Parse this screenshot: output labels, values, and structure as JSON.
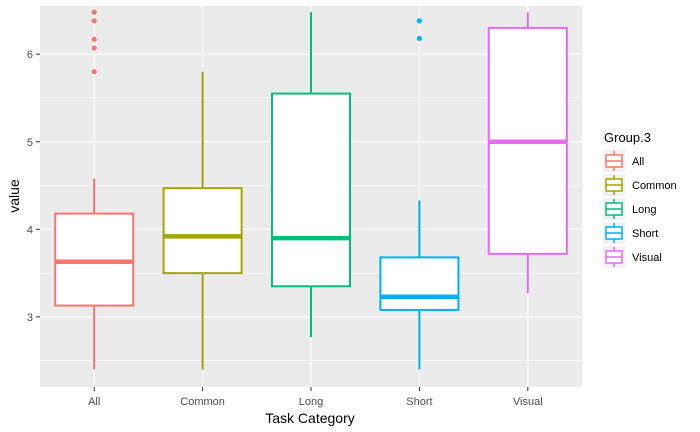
{
  "chart_data": {
    "type": "boxplot",
    "title": "",
    "xlabel": "Task Category",
    "ylabel": "value",
    "ylim": [
      2.2,
      6.55
    ],
    "yticks": [
      3,
      4,
      5,
      6
    ],
    "categories": [
      "All",
      "Common",
      "Long",
      "Short",
      "Visual"
    ],
    "boxes": [
      {
        "category": "All",
        "color": "#F8766D",
        "lower_whisker": 2.4,
        "q1": 3.13,
        "median": 3.63,
        "q3": 4.18,
        "upper_whisker": 4.58,
        "outliers": [
          5.8,
          6.07,
          6.17,
          6.38,
          6.48
        ]
      },
      {
        "category": "Common",
        "color": "#A3A500",
        "lower_whisker": 2.4,
        "q1": 3.5,
        "median": 3.92,
        "q3": 4.47,
        "upper_whisker": 5.8,
        "outliers": []
      },
      {
        "category": "Long",
        "color": "#00BF7D",
        "lower_whisker": 2.77,
        "q1": 3.35,
        "median": 3.9,
        "q3": 5.55,
        "upper_whisker": 6.48,
        "outliers": []
      },
      {
        "category": "Short",
        "color": "#00B0F6",
        "lower_whisker": 2.4,
        "q1": 3.08,
        "median": 3.23,
        "q3": 3.68,
        "upper_whisker": 4.33,
        "outliers": [
          6.18,
          6.38
        ]
      },
      {
        "category": "Visual",
        "color": "#E76BF3",
        "lower_whisker": 3.27,
        "q1": 3.72,
        "median": 5.0,
        "q3": 6.3,
        "upper_whisker": 6.48,
        "outliers": []
      }
    ],
    "legend": {
      "title": "Group.3",
      "position": "right",
      "entries": [
        "All",
        "Common",
        "Long",
        "Short",
        "Visual"
      ]
    },
    "grid": true,
    "panel_background": "#EBEBEB"
  }
}
